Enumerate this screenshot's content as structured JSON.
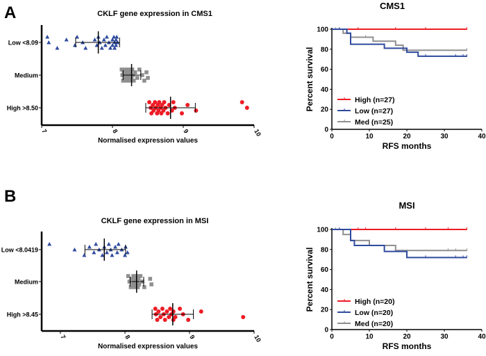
{
  "panels": [
    "A",
    "B"
  ],
  "colors": {
    "high": "#ee1c25",
    "low": "#2e4a9e",
    "med": "#8f8f8f"
  },
  "chart_data": [
    {
      "type": "scatter",
      "title": "CKLF gene expression  in CMS1",
      "xlabel": "Normalised expression values",
      "xlim": [
        7,
        10
      ],
      "xticks": [
        "7",
        "8",
        "9",
        "10"
      ],
      "categories": [
        "Low <8.09",
        "Medium",
        "High >8.50"
      ],
      "series": [
        {
          "group": "low",
          "marker": "triangle",
          "values": [
            7.08,
            7.1,
            7.22,
            7.35,
            7.47,
            7.5,
            7.58,
            7.62,
            7.75,
            7.78,
            7.8,
            7.82,
            7.85,
            7.88,
            7.9,
            7.92,
            7.95,
            7.97,
            8.0,
            8.0,
            8.02,
            8.03,
            8.03,
            8.05,
            8.05,
            8.06,
            8.07
          ],
          "mean": 7.8,
          "sd": [
            7.48,
            8.1
          ]
        },
        {
          "group": "med",
          "marker": "square",
          "values": [
            8.13,
            8.14,
            8.15,
            8.16,
            8.17,
            8.18,
            8.19,
            8.2,
            8.21,
            8.22,
            8.23,
            8.24,
            8.25,
            8.26,
            8.27,
            8.28,
            8.29,
            8.3,
            8.32,
            8.35,
            8.38,
            8.42,
            8.45,
            8.48,
            8.5
          ],
          "mean": 8.27,
          "sd": [
            8.15,
            8.4
          ]
        },
        {
          "group": "high",
          "marker": "circle",
          "values": [
            8.52,
            8.54,
            8.55,
            8.57,
            8.58,
            8.6,
            8.61,
            8.63,
            8.64,
            8.65,
            8.66,
            8.68,
            8.69,
            8.7,
            8.72,
            8.73,
            8.75,
            8.78,
            8.8,
            8.84,
            8.86,
            8.88,
            8.98,
            9.06,
            9.18,
            9.83,
            9.9
          ],
          "mean": 8.82,
          "sd": [
            8.47,
            9.17
          ]
        }
      ]
    },
    {
      "type": "line",
      "title": "CMS1",
      "xlabel": "RFS months",
      "ylabel": "Percent survival",
      "xlim": [
        0,
        40
      ],
      "ylim": [
        0,
        100
      ],
      "xticks": [
        "0",
        "10",
        "20",
        "30",
        "40"
      ],
      "yticks": [
        "0",
        "20",
        "40",
        "60",
        "80",
        "100"
      ],
      "legend": "bottom-left",
      "series": [
        {
          "name": "High (n=27)",
          "group": "high",
          "steps": [
            [
              0,
              100
            ],
            [
              36,
              100
            ]
          ],
          "censored": [
            7,
            17,
            25,
            36
          ]
        },
        {
          "name": "Low (n=27)",
          "group": "low",
          "steps": [
            [
              0,
              100
            ],
            [
              4,
              96
            ],
            [
              5,
              85
            ],
            [
              14,
              81
            ],
            [
              20,
              77
            ],
            [
              23,
              73
            ],
            [
              36,
              73
            ]
          ],
          "censored": [
            2,
            25,
            33,
            35,
            36
          ]
        },
        {
          "name": "Med (n=25)",
          "group": "med",
          "steps": [
            [
              0,
              100
            ],
            [
              3,
              96
            ],
            [
              5,
              92
            ],
            [
              11,
              88
            ],
            [
              17,
              84
            ],
            [
              19,
              79
            ],
            [
              36,
              79
            ]
          ],
          "censored": [
            1,
            9,
            36
          ]
        }
      ]
    },
    {
      "type": "scatter",
      "title": "CKLF gene expression  in MSI",
      "xlabel": "Normalised expression values",
      "xlim": [
        6.71,
        10
      ],
      "xticks": [
        "7",
        "8",
        "9",
        "10"
      ],
      "categories": [
        "Low <8.0419",
        "Medium",
        "High >8.45"
      ],
      "series": [
        {
          "group": "low",
          "marker": "triangle",
          "values": [
            6.83,
            7.22,
            7.37,
            7.45,
            7.52,
            7.55,
            7.6,
            7.65,
            7.68,
            7.72,
            7.75,
            7.78,
            7.8,
            7.85,
            7.88,
            7.9,
            7.95,
            8.0,
            8.01,
            8.04
          ],
          "mean": 7.68,
          "sd": [
            7.38,
            8.01
          ]
        },
        {
          "group": "med",
          "marker": "square",
          "values": [
            8.05,
            8.07,
            8.09,
            8.1,
            8.12,
            8.13,
            8.14,
            8.15,
            8.16,
            8.17,
            8.18,
            8.19,
            8.2,
            8.21,
            8.22,
            8.24,
            8.27,
            8.3,
            8.39,
            8.41
          ],
          "mean": 8.18,
          "sd": [
            8.08,
            8.29
          ]
        },
        {
          "group": "high",
          "marker": "circle",
          "values": [
            8.47,
            8.48,
            8.5,
            8.52,
            8.55,
            8.58,
            8.6,
            8.62,
            8.65,
            8.68,
            8.7,
            8.72,
            8.75,
            8.75,
            8.78,
            8.85,
            8.9,
            8.98,
            9.18,
            9.83
          ],
          "mean": 8.74,
          "sd": [
            8.42,
            9.06
          ]
        }
      ]
    },
    {
      "type": "line",
      "title": "MSI",
      "xlabel": "RFS months",
      "ylabel": "Percent survival",
      "xlim": [
        0,
        40
      ],
      "ylim": [
        0,
        100
      ],
      "xticks": [
        "0",
        "10",
        "20",
        "30",
        "40"
      ],
      "yticks": [
        "0",
        "20",
        "40",
        "60",
        "80",
        "100"
      ],
      "legend": "bottom-left",
      "series": [
        {
          "name": "High (n=20)",
          "group": "high",
          "steps": [
            [
              0,
              100
            ],
            [
              36,
              100
            ]
          ],
          "censored": [
            7,
            9,
            17,
            25,
            31,
            36
          ]
        },
        {
          "name": "Low (n=20)",
          "group": "low",
          "steps": [
            [
              0,
              100
            ],
            [
              5,
              89
            ],
            [
              6,
              84
            ],
            [
              14,
              78
            ],
            [
              20,
              72
            ],
            [
              36,
              72
            ]
          ],
          "censored": [
            2,
            25,
            33,
            35,
            36
          ]
        },
        {
          "name": "Med (n=20)",
          "group": "med",
          "steps": [
            [
              0,
              100
            ],
            [
              3,
              95
            ],
            [
              5,
              89
            ],
            [
              10,
              84
            ],
            [
              17,
              79
            ],
            [
              36,
              79
            ]
          ],
          "censored": [
            1,
            31,
            33,
            36
          ]
        }
      ]
    }
  ]
}
